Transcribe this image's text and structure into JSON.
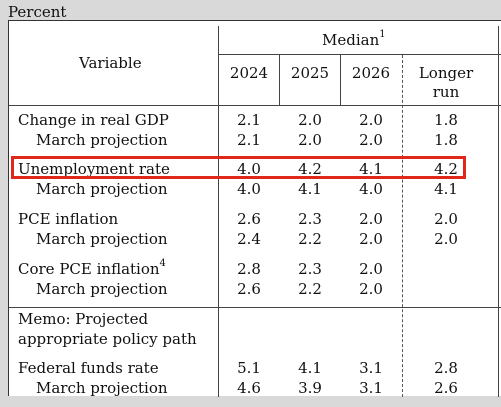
{
  "unit_label": "Percent",
  "header": {
    "variable": "Variable",
    "median": "Median",
    "median_note": "1",
    "years": [
      "2024",
      "2025",
      "2026"
    ],
    "longer_run_line1": "Longer",
    "longer_run_line2": "run"
  },
  "rows": {
    "gdp": {
      "label": "Change in real GDP",
      "v2024": "2.1",
      "v2025": "2.0",
      "v2026": "2.0",
      "lr": "1.8"
    },
    "gdp_march": {
      "label": "March projection",
      "v2024": "2.1",
      "v2025": "2.0",
      "v2026": "2.0",
      "lr": "1.8"
    },
    "unemp": {
      "label": "Unemployment rate",
      "v2024": "4.0",
      "v2025": "4.2",
      "v2026": "4.1",
      "lr": "4.2"
    },
    "unemp_march": {
      "label": "March projection",
      "v2024": "4.0",
      "v2025": "4.1",
      "v2026": "4.0",
      "lr": "4.1"
    },
    "pce": {
      "label": "PCE inflation",
      "v2024": "2.6",
      "v2025": "2.3",
      "v2026": "2.0",
      "lr": "2.0"
    },
    "pce_march": {
      "label": "March projection",
      "v2024": "2.4",
      "v2025": "2.2",
      "v2026": "2.0",
      "lr": "2.0"
    },
    "core": {
      "label": "Core PCE inflation",
      "note": "4",
      "v2024": "2.8",
      "v2025": "2.3",
      "v2026": "2.0"
    },
    "core_march": {
      "label": "March projection",
      "v2024": "2.6",
      "v2025": "2.2",
      "v2026": "2.0"
    },
    "memo_line1": "Memo: Projected",
    "memo_line2": "appropriate policy path",
    "ffr": {
      "label": "Federal funds rate",
      "v2024": "5.1",
      "v2025": "4.1",
      "v2026": "3.1",
      "lr": "2.8"
    },
    "ffr_march": {
      "label": "March projection",
      "v2024": "4.6",
      "v2025": "3.9",
      "v2026": "3.1",
      "lr": "2.6"
    }
  },
  "highlight_color": "#e0281a"
}
